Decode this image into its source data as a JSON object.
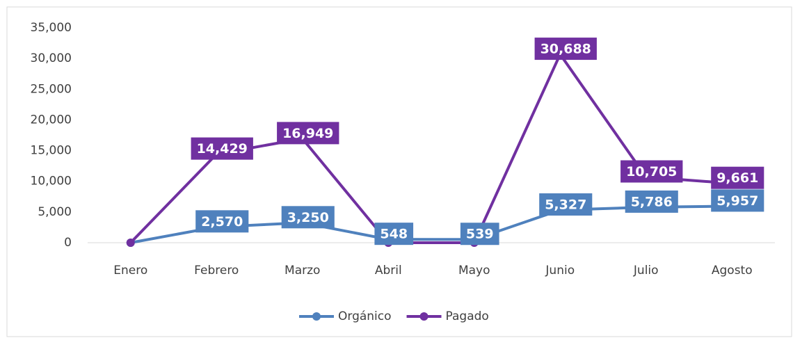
{
  "chart_data": {
    "type": "line",
    "categories": [
      "Enero",
      "Febrero",
      "Marzo",
      "Abril",
      "Mayo",
      "Junio",
      "Julio",
      "Agosto"
    ],
    "series": [
      {
        "name": "Orgánico",
        "color": "#4f81bd",
        "values": [
          0,
          2570,
          3250,
          548,
          539,
          5327,
          5786,
          5957
        ],
        "value_labels": [
          null,
          "2,570",
          "3,250",
          "548",
          "539",
          "5,327",
          "5,786",
          "5,957"
        ]
      },
      {
        "name": "Pagado",
        "color": "#7030a0",
        "values": [
          0,
          14429,
          16949,
          0,
          0,
          30688,
          10705,
          9661
        ],
        "value_labels": [
          null,
          "14,429",
          "16,949",
          null,
          null,
          "30,688",
          "10,705",
          "9,661"
        ]
      }
    ],
    "ylim": [
      0,
      35000
    ],
    "yticks": [
      0,
      {
        "value": 5000,
        "label": "5,000"
      },
      {
        "value": 10000,
        "label": "10,000"
      },
      {
        "value": 15000,
        "label": "15,000"
      },
      {
        "value": 20000,
        "label": "20,000"
      },
      {
        "value": 25000,
        "label": "25,000"
      },
      {
        "value": 30000,
        "label": "30,000"
      },
      {
        "value": 35000,
        "label": "35,000"
      }
    ],
    "legend": "bottom"
  }
}
